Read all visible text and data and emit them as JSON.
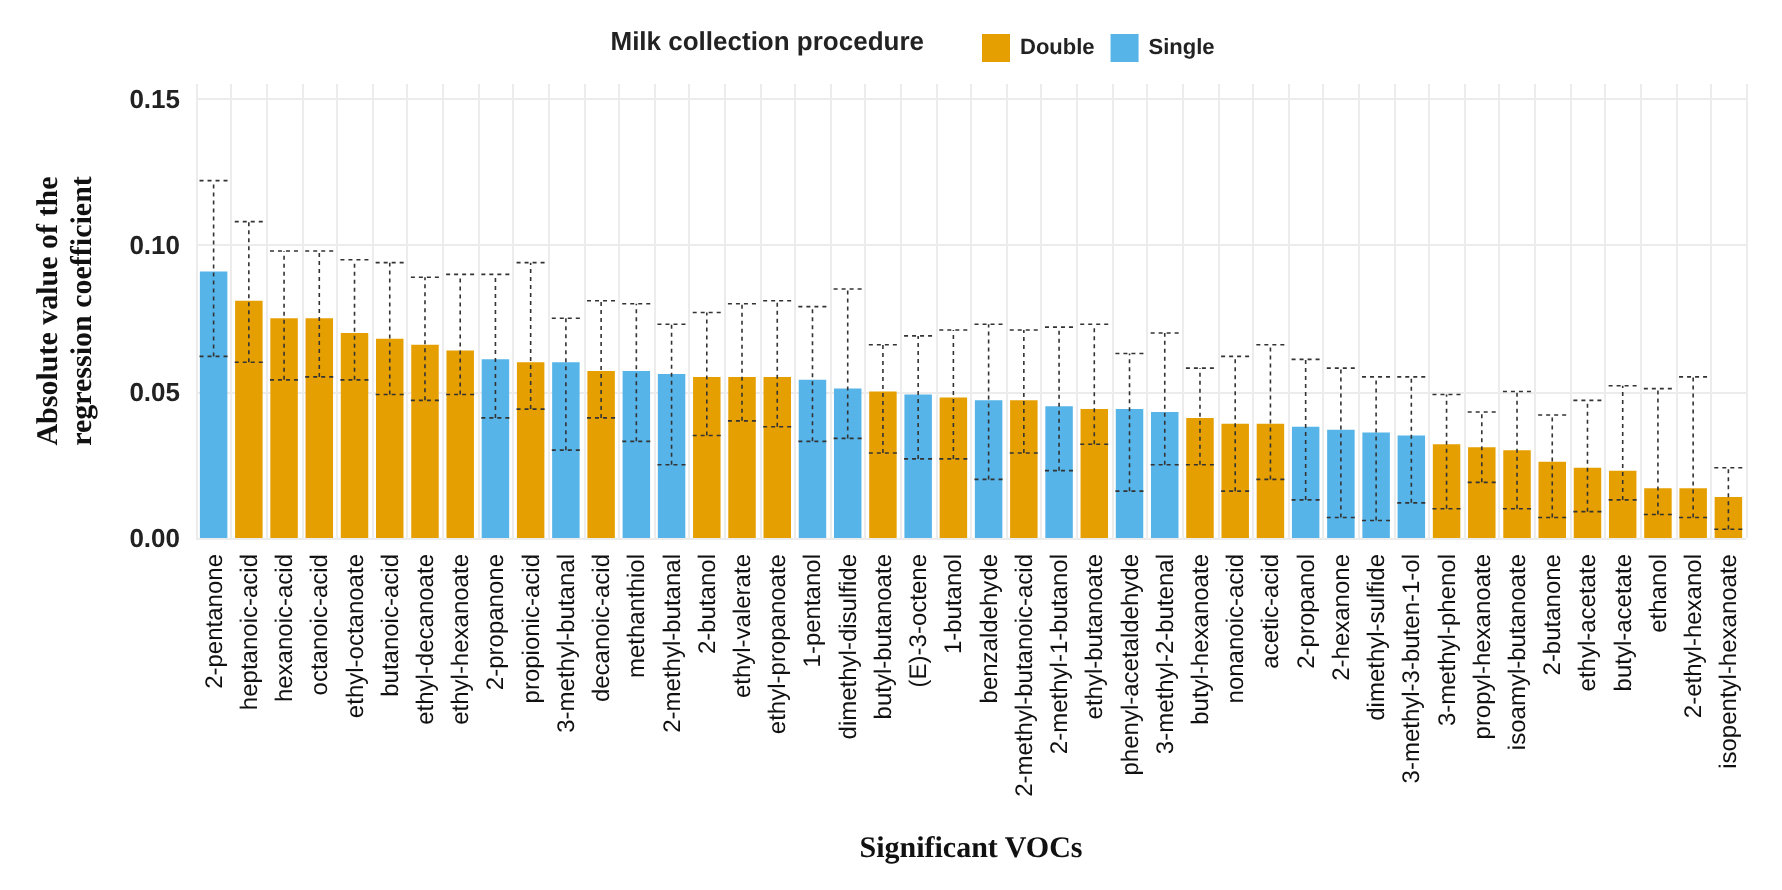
{
  "chart_data": {
    "type": "bar",
    "xlabel": "Significant VOCs",
    "ylabel": "Absolute value of the\nregression coefficient",
    "legend_title": "Milk collection procedure",
    "categories": [
      "2-pentanone",
      "heptanoic-acid",
      "hexanoic-acid",
      "octanoic-acid",
      "ethyl-octanoate",
      "butanoic-acid",
      "ethyl-decanoate",
      "ethyl-hexanoate",
      "2-propanone",
      "propionic-acid",
      "3-methyl-butanal",
      "decanoic-acid",
      "methanthiol",
      "2-methyl-butanal",
      "2-butanol",
      "ethyl-valerate",
      "ethyl-propanoate",
      "1-pentanol",
      "dimethyl-disulfide",
      "butyl-butanoate",
      "(E)-3-octene",
      "1-butanol",
      "benzaldehyde",
      "2-methyl-butanoic-acid",
      "2-methyl-1-butanol",
      "ethyl-butanoate",
      "phenyl-acetaldehyde",
      "3-methyl-2-butenal",
      "butyl-hexanoate",
      "nonanoic-acid",
      "acetic-acid",
      "2-propanol",
      "2-hexanone",
      "dimethyl-sulfide",
      "3-methyl-3-buten-1-ol",
      "3-methyl-phenol",
      "propyl-hexanoate",
      "isoamyl-butanoate",
      "2-butanone",
      "ethyl-acetate",
      "butyl-acetate",
      "ethanol",
      "2-ethyl-hexanol",
      "isopentyl-hexanoate"
    ],
    "series": [
      {
        "name": "Double",
        "color": "#e69f00",
        "values": [
          null,
          0.081,
          0.075,
          0.075,
          0.07,
          0.068,
          0.066,
          0.064,
          null,
          0.06,
          null,
          0.057,
          null,
          null,
          0.055,
          0.055,
          0.055,
          null,
          null,
          0.05,
          null,
          0.048,
          null,
          0.047,
          null,
          0.044,
          null,
          null,
          0.041,
          0.039,
          0.039,
          null,
          null,
          null,
          null,
          0.032,
          0.031,
          0.03,
          0.026,
          0.024,
          0.023,
          0.017,
          0.017,
          0.014
        ],
        "errors": [
          null,
          [
            0.06,
            0.108
          ],
          [
            0.054,
            0.098
          ],
          [
            0.055,
            0.098
          ],
          [
            0.054,
            0.095
          ],
          [
            0.049,
            0.094
          ],
          [
            0.047,
            0.089
          ],
          [
            0.049,
            0.09
          ],
          null,
          [
            0.044,
            0.094
          ],
          null,
          [
            0.041,
            0.081
          ],
          null,
          null,
          [
            0.035,
            0.077
          ],
          [
            0.04,
            0.08
          ],
          [
            0.038,
            0.081
          ],
          null,
          null,
          [
            0.029,
            0.066
          ],
          null,
          [
            0.027,
            0.071
          ],
          null,
          [
            0.029,
            0.071
          ],
          null,
          [
            0.032,
            0.073
          ],
          null,
          null,
          [
            0.025,
            0.058
          ],
          [
            0.016,
            0.062
          ],
          [
            0.02,
            0.066
          ],
          null,
          null,
          null,
          null,
          [
            0.01,
            0.049
          ],
          [
            0.019,
            0.043
          ],
          [
            0.01,
            0.05
          ],
          [
            0.007,
            0.042
          ],
          [
            0.009,
            0.047
          ],
          [
            0.013,
            0.052
          ],
          [
            0.008,
            0.051
          ],
          [
            0.007,
            0.055
          ],
          [
            0.003,
            0.024
          ]
        ]
      },
      {
        "name": "Single",
        "color": "#56b4e9",
        "values": [
          0.091,
          null,
          null,
          null,
          null,
          null,
          null,
          null,
          0.061,
          null,
          0.06,
          null,
          0.057,
          0.056,
          null,
          null,
          null,
          0.054,
          0.051,
          null,
          0.049,
          null,
          0.047,
          null,
          0.045,
          null,
          0.044,
          0.043,
          null,
          null,
          null,
          0.038,
          0.037,
          0.036,
          0.035,
          null,
          null,
          null,
          null,
          null,
          null,
          null,
          null,
          null
        ],
        "errors": [
          [
            0.062,
            0.122
          ],
          null,
          null,
          null,
          null,
          null,
          null,
          null,
          [
            0.041,
            0.09
          ],
          null,
          [
            0.03,
            0.075
          ],
          null,
          [
            0.033,
            0.08
          ],
          [
            0.025,
            0.073
          ],
          null,
          null,
          null,
          [
            0.033,
            0.079
          ],
          [
            0.034,
            0.085
          ],
          null,
          [
            0.027,
            0.069
          ],
          null,
          [
            0.02,
            0.073
          ],
          null,
          [
            0.023,
            0.072
          ],
          null,
          [
            0.016,
            0.063
          ],
          [
            0.025,
            0.07
          ],
          null,
          null,
          null,
          [
            0.013,
            0.061
          ],
          [
            0.007,
            0.058
          ],
          [
            0.006,
            0.055
          ],
          [
            0.012,
            0.055
          ],
          null,
          null,
          null,
          null,
          null,
          null,
          null,
          null,
          null
        ]
      }
    ],
    "ylim": [
      0,
      0.155
    ],
    "yticks": [
      {
        "value": 0,
        "label": "0.00"
      },
      {
        "value": 0.05,
        "label": "0.05"
      },
      {
        "value": 0.1,
        "label": "0.10"
      },
      {
        "value": 0.15,
        "label": "0.15"
      }
    ],
    "grid": true,
    "legend": "top"
  }
}
